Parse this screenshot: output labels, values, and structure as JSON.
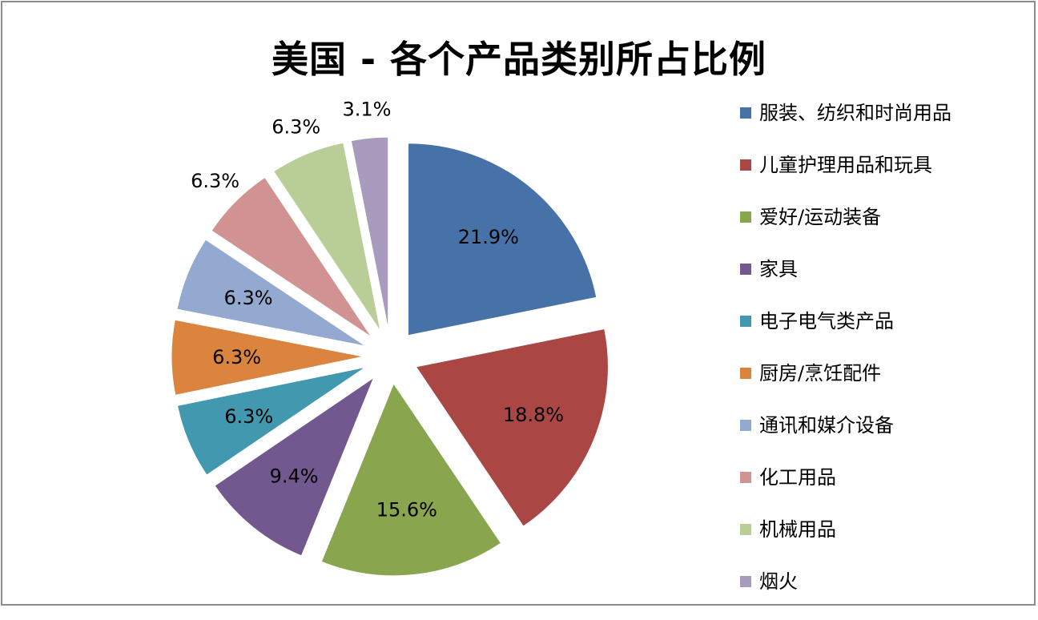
{
  "chart_data": {
    "type": "pie",
    "title": "美国 - 各个产品类别所占比例",
    "slices": [
      {
        "name": "服装、纺织和时尚用品",
        "value": 21.9,
        "label": "21.9%",
        "color": "#4672A8"
      },
      {
        "name": "儿童护理用品和玩具",
        "value": 18.8,
        "label": "18.8%",
        "color": "#AA4643"
      },
      {
        "name": "爱好/运动装备",
        "value": 15.6,
        "label": "15.6%",
        "color": "#89A54E"
      },
      {
        "name": "家具",
        "value": 9.4,
        "label": "9.4%",
        "color": "#71588F"
      },
      {
        "name": "电子电气类产品",
        "value": 6.3,
        "label": "6.3%",
        "color": "#4198AF"
      },
      {
        "name": "厨房/烹饪配件",
        "value": 6.3,
        "label": "6.3%",
        "color": "#DB843D"
      },
      {
        "name": "通讯和媒介设备",
        "value": 6.3,
        "label": "6.3%",
        "color": "#93A9CF"
      },
      {
        "name": "化工用品",
        "value": 6.3,
        "label": "6.3%",
        "color": "#D19392"
      },
      {
        "name": "机械用品",
        "value": 6.3,
        "label": "6.3%",
        "color": "#B9CD96"
      },
      {
        "name": "烟火",
        "value": 3.1,
        "label": "3.1%",
        "color": "#A99BBD"
      }
    ],
    "legend_position": "right"
  }
}
